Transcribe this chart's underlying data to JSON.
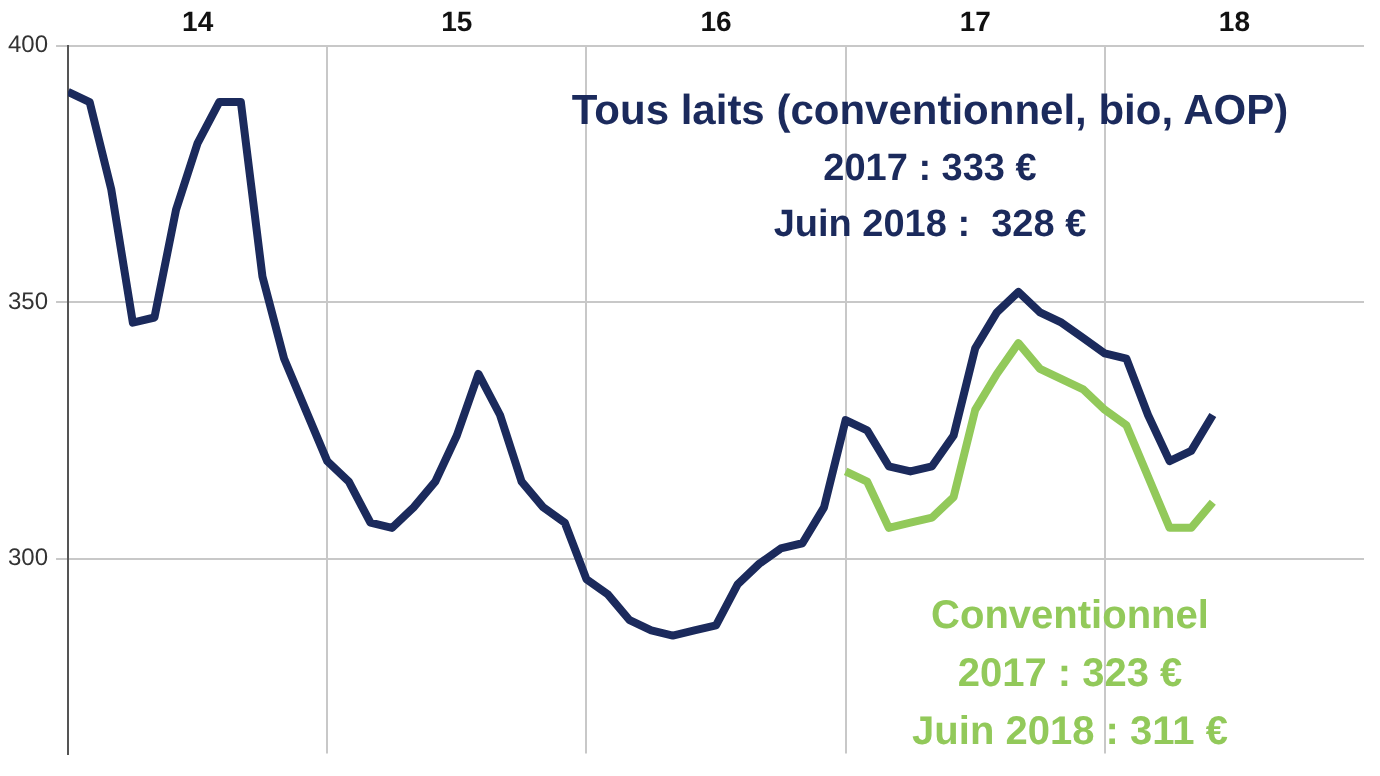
{
  "chart_data": {
    "type": "line",
    "x": [
      "2014-01",
      "2014-02",
      "2014-03",
      "2014-04",
      "2014-05",
      "2014-06",
      "2014-07",
      "2014-08",
      "2014-09",
      "2014-10",
      "2014-11",
      "2014-12",
      "2015-01",
      "2015-02",
      "2015-03",
      "2015-04",
      "2015-05",
      "2015-06",
      "2015-07",
      "2015-08",
      "2015-09",
      "2015-10",
      "2015-11",
      "2015-12",
      "2016-01",
      "2016-02",
      "2016-03",
      "2016-04",
      "2016-05",
      "2016-06",
      "2016-07",
      "2016-08",
      "2016-09",
      "2016-10",
      "2016-11",
      "2016-12",
      "2017-01",
      "2017-02",
      "2017-03",
      "2017-04",
      "2017-05",
      "2017-06",
      "2017-07",
      "2017-08",
      "2017-09",
      "2017-10",
      "2017-11",
      "2017-12",
      "2018-01",
      "2018-02",
      "2018-03",
      "2018-04",
      "2018-05",
      "2018-06"
    ],
    "series": [
      {
        "color": "#1b2a5c",
        "values": [
          391,
          389,
          372,
          346,
          347,
          368,
          381,
          389,
          389,
          355,
          339,
          329,
          319,
          315,
          307,
          306,
          310,
          315,
          324,
          336,
          328,
          315,
          310,
          307,
          296,
          293,
          288,
          286,
          285,
          286,
          287,
          295,
          299,
          302,
          303,
          310,
          327,
          325,
          318,
          317,
          318,
          324,
          341,
          348,
          352,
          348,
          346,
          343,
          340,
          339,
          328,
          319,
          321,
          328
        ]
      },
      {
        "color": "#92c95a",
        "values": [
          null,
          null,
          null,
          null,
          null,
          null,
          null,
          null,
          null,
          null,
          null,
          null,
          null,
          null,
          null,
          null,
          null,
          null,
          null,
          null,
          null,
          null,
          null,
          null,
          null,
          null,
          null,
          null,
          null,
          null,
          null,
          null,
          null,
          null,
          null,
          null,
          317,
          315,
          306,
          307,
          308,
          312,
          329,
          336,
          342,
          337,
          335,
          333,
          329,
          326,
          316,
          306,
          306,
          311
        ]
      }
    ],
    "xlim": [
      "2014-01",
      "2019-01"
    ],
    "xticks": [
      {
        "value": "2014-07",
        "label": "14"
      },
      {
        "value": "2015-01",
        "label": null
      },
      {
        "value": "2015-07",
        "label": "15"
      },
      {
        "value": "2016-01",
        "label": null
      },
      {
        "value": "2016-07",
        "label": "16"
      },
      {
        "value": "2017-01",
        "label": null
      },
      {
        "value": "2017-07",
        "label": "17"
      },
      {
        "value": "2018-01",
        "label": null
      },
      {
        "value": "2018-07",
        "label": "18"
      }
    ],
    "ylim": [
      262,
      400
    ],
    "yticks": [
      300,
      350,
      400
    ],
    "grid": true,
    "annotations": [
      "Tous laits (conventionnel, bio, AOP)",
      "2017 : 333 €",
      "Juin 2018 :  328 €",
      "Conventionnel",
      "2017 : 323 €",
      "Juin 2018 : 311 €"
    ]
  }
}
